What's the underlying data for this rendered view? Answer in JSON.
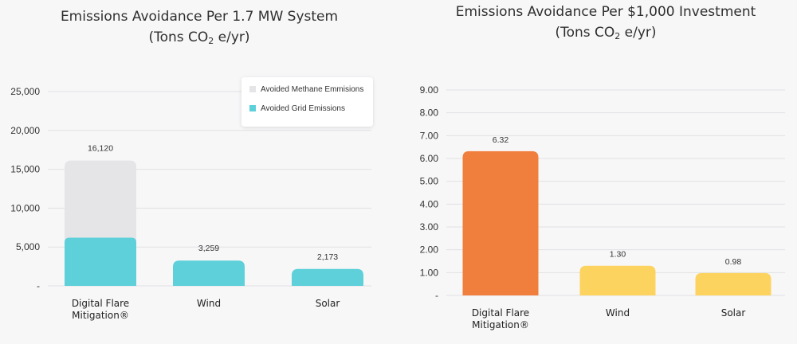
{
  "colors": {
    "background": "#f7f7f8",
    "methane": "#e5e5e8",
    "grid": "#5ed0d9",
    "flare_investment": "#f07e3c",
    "other_investment": "#fcd35e"
  },
  "chart_data": [
    {
      "type": "bar",
      "stacked": true,
      "title_line1": "Emissions Avoidance Per 1.7 MW System",
      "title_line2_pre": "(Tons CO",
      "title_line2_sub": "2",
      "title_line2_post": " e/yr)",
      "categories": [
        [
          "Digital Flare",
          "Mitigation®"
        ],
        [
          "Wind"
        ],
        [
          "Solar"
        ]
      ],
      "series": [
        {
          "name": "Avoided Grid Emissions",
          "color": "#5ed0d9",
          "values": [
            6200,
            3259,
            2173
          ]
        },
        {
          "name": "Avoided Methane Emmisions",
          "color": "#e5e5e8",
          "values": [
            9920,
            0,
            0
          ]
        }
      ],
      "data_labels": [
        "16,120",
        "3,259",
        "2,173"
      ],
      "totals": [
        16120,
        3259,
        2173
      ],
      "ylim": [
        0,
        25000
      ],
      "yticks": [
        0,
        5000,
        10000,
        15000,
        20000,
        25000
      ],
      "ytick_labels": [
        "-",
        "5,000",
        "10,000",
        "15,000",
        "20,000",
        "25,000"
      ],
      "grid": true,
      "legend": {
        "placement": "top-right",
        "items": [
          {
            "label": "Avoided Methane Emmisions",
            "color": "#e5e5e8"
          },
          {
            "label": "Avoided Grid Emissions",
            "color": "#5ed0d9"
          }
        ]
      }
    },
    {
      "type": "bar",
      "title_line1": "Emissions Avoidance Per $1,000 Investment",
      "title_line2_pre": "(Tons CO",
      "title_line2_sub": "2",
      "title_line2_post": " e/yr)",
      "categories": [
        [
          "Digital Flare",
          "Mitigation®"
        ],
        [
          "Wind"
        ],
        [
          "Solar"
        ]
      ],
      "values": [
        6.32,
        1.3,
        0.98
      ],
      "data_labels": [
        "6.32",
        "1.30",
        "0.98"
      ],
      "colors": [
        "#f07e3c",
        "#fcd35e",
        "#fcd35e"
      ],
      "ylim": [
        0,
        9
      ],
      "yticks": [
        0,
        1,
        2,
        3,
        4,
        5,
        6,
        7,
        8,
        9
      ],
      "ytick_labels": [
        "-",
        "1.00",
        "2.00",
        "3.00",
        "4.00",
        "5.00",
        "6.00",
        "7.00",
        "8.00",
        "9.00"
      ],
      "grid": true
    }
  ]
}
